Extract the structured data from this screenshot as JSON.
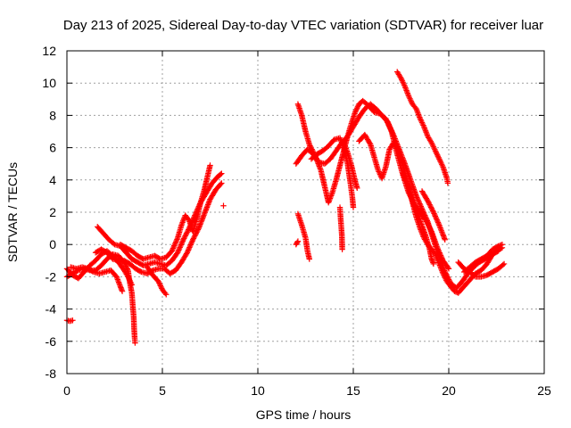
{
  "chart_data": {
    "type": "scatter",
    "title": "Day 213 of 2025, Sidereal Day-to-day VTEC variation (SDTVAR) for receiver luar",
    "xlabel": "GPS time / hours",
    "ylabel": "SDTVAR / TECUs",
    "xlim": [
      0,
      25
    ],
    "ylim": [
      -8,
      12
    ],
    "xticks": [
      0,
      5,
      10,
      15,
      20,
      25
    ],
    "yticks": [
      -8,
      -6,
      -4,
      -2,
      0,
      2,
      4,
      6,
      8,
      10,
      12
    ],
    "grid": true,
    "marker": "+",
    "color": "#ff0000",
    "series": [
      {
        "name": "s1",
        "points": [
          [
            0.0,
            -4.7
          ],
          [
            0.15,
            -4.75
          ],
          [
            0.3,
            -4.7
          ]
        ]
      },
      {
        "name": "s2",
        "points": [
          [
            0.0,
            -2.0
          ],
          [
            0.3,
            -1.8
          ],
          [
            0.6,
            -1.6
          ],
          [
            0.9,
            -1.5
          ],
          [
            1.2,
            -1.6
          ],
          [
            1.5,
            -1.6
          ],
          [
            1.8,
            -1.3
          ],
          [
            2.1,
            -0.9
          ],
          [
            2.4,
            -0.6
          ],
          [
            2.7,
            -0.7
          ],
          [
            3.0,
            -1.1
          ],
          [
            3.2,
            -1.6
          ],
          [
            3.3,
            -2.4
          ],
          [
            3.4,
            -3.0
          ],
          [
            3.45,
            -3.8
          ],
          [
            3.5,
            -4.5
          ],
          [
            3.52,
            -5.2
          ],
          [
            3.55,
            -5.8
          ],
          [
            3.57,
            -6.1
          ]
        ]
      },
      {
        "name": "s3",
        "points": [
          [
            0.0,
            -1.5
          ],
          [
            0.3,
            -1.9
          ],
          [
            0.6,
            -2.1
          ],
          [
            0.9,
            -1.7
          ],
          [
            1.2,
            -1.3
          ],
          [
            1.5,
            -1.0
          ],
          [
            1.8,
            -0.6
          ],
          [
            2.1,
            -0.4
          ],
          [
            2.4,
            -0.7
          ],
          [
            2.7,
            -1.1
          ],
          [
            3.0,
            -1.6
          ],
          [
            3.2,
            -2.0
          ],
          [
            3.4,
            -2.5
          ]
        ]
      },
      {
        "name": "s4",
        "points": [
          [
            0.2,
            -1.4
          ],
          [
            0.5,
            -1.5
          ],
          [
            0.8,
            -1.4
          ],
          [
            1.1,
            -1.5
          ],
          [
            1.4,
            -1.7
          ],
          [
            1.7,
            -1.8
          ],
          [
            2.0,
            -1.7
          ],
          [
            2.3,
            -1.6
          ],
          [
            2.6,
            -2.0
          ],
          [
            2.8,
            -2.6
          ],
          [
            2.9,
            -2.9
          ]
        ]
      },
      {
        "name": "s5",
        "points": [
          [
            1.6,
            1.1
          ],
          [
            1.9,
            0.7
          ],
          [
            2.2,
            0.3
          ],
          [
            2.5,
            0.0
          ],
          [
            2.8,
            -0.1
          ],
          [
            3.1,
            -0.5
          ],
          [
            3.4,
            -0.9
          ],
          [
            3.7,
            -1.1
          ],
          [
            4.0,
            -1.3
          ],
          [
            4.3,
            -1.2
          ],
          [
            4.6,
            -1.1
          ],
          [
            4.9,
            -1.2
          ],
          [
            5.2,
            -1.3
          ],
          [
            5.5,
            -1.0
          ],
          [
            5.8,
            -0.5
          ],
          [
            6.1,
            0.3
          ],
          [
            6.4,
            1.0
          ],
          [
            6.7,
            1.8
          ],
          [
            7.0,
            2.6
          ],
          [
            7.3,
            3.2
          ],
          [
            7.6,
            3.8
          ],
          [
            7.9,
            4.2
          ],
          [
            8.1,
            4.4
          ]
        ]
      },
      {
        "name": "s6",
        "points": [
          [
            2.8,
            0.0
          ],
          [
            3.1,
            -0.2
          ],
          [
            3.4,
            -0.4
          ],
          [
            3.7,
            -0.7
          ],
          [
            4.0,
            -0.9
          ],
          [
            4.3,
            -0.8
          ],
          [
            4.6,
            -0.7
          ],
          [
            4.9,
            -0.9
          ],
          [
            5.2,
            -0.8
          ],
          [
            5.5,
            -0.4
          ],
          [
            5.8,
            0.4
          ],
          [
            6.0,
            1.2
          ],
          [
            6.2,
            1.8
          ],
          [
            6.4,
            1.5
          ],
          [
            6.6,
            0.8
          ],
          [
            6.8,
            1.6
          ],
          [
            7.0,
            2.6
          ],
          [
            7.2,
            3.4
          ],
          [
            7.4,
            4.4
          ],
          [
            7.5,
            4.9
          ]
        ]
      },
      {
        "name": "s7",
        "points": [
          [
            1.5,
            -0.5
          ],
          [
            1.8,
            -0.3
          ],
          [
            2.1,
            -0.5
          ],
          [
            2.4,
            -0.9
          ],
          [
            2.7,
            -1.0
          ],
          [
            3.0,
            -1.0
          ],
          [
            3.3,
            -1.2
          ],
          [
            3.6,
            -1.5
          ],
          [
            3.9,
            -1.7
          ],
          [
            4.2,
            -1.8
          ],
          [
            4.5,
            -1.6
          ],
          [
            4.8,
            -1.5
          ],
          [
            5.1,
            -1.5
          ],
          [
            5.4,
            -1.8
          ],
          [
            5.7,
            -1.6
          ],
          [
            6.0,
            -1.1
          ],
          [
            6.3,
            -0.5
          ],
          [
            6.6,
            0.3
          ],
          [
            6.9,
            1.0
          ],
          [
            7.2,
            1.9
          ],
          [
            7.5,
            2.8
          ],
          [
            7.8,
            3.4
          ],
          [
            8.1,
            3.8
          ]
        ]
      },
      {
        "name": "s8",
        "points": [
          [
            4.2,
            -1.4
          ],
          [
            4.5,
            -1.9
          ],
          [
            4.8,
            -2.3
          ],
          [
            5.0,
            -2.8
          ],
          [
            5.2,
            -3.1
          ]
        ]
      },
      {
        "name": "s9",
        "points": [
          [
            8.2,
            2.4
          ]
        ]
      },
      {
        "name": "s10",
        "points": [
          [
            12.0,
            0.0
          ],
          [
            12.1,
            0.2
          ]
        ]
      },
      {
        "name": "s11",
        "points": [
          [
            12.0,
            5.0
          ],
          [
            12.3,
            5.5
          ],
          [
            12.6,
            5.9
          ],
          [
            12.9,
            5.6
          ],
          [
            13.2,
            5.1
          ],
          [
            13.5,
            5.0
          ],
          [
            13.8,
            5.3
          ],
          [
            14.1,
            5.8
          ],
          [
            14.4,
            6.3
          ],
          [
            14.7,
            6.7
          ],
          [
            15.0,
            7.3
          ],
          [
            15.3,
            7.9
          ],
          [
            15.6,
            8.4
          ],
          [
            15.9,
            8.7
          ],
          [
            16.2,
            8.4
          ],
          [
            16.5,
            8.0
          ],
          [
            16.8,
            7.6
          ],
          [
            17.1,
            6.8
          ],
          [
            17.4,
            5.9
          ],
          [
            17.7,
            5.0
          ],
          [
            18.0,
            4.0
          ],
          [
            18.3,
            3.0
          ],
          [
            18.6,
            2.2
          ],
          [
            18.9,
            1.4
          ],
          [
            19.2,
            0.3
          ],
          [
            19.5,
            -0.8
          ],
          [
            19.8,
            -1.7
          ],
          [
            20.1,
            -2.4
          ],
          [
            20.4,
            -2.7
          ],
          [
            20.7,
            -2.3
          ],
          [
            21.0,
            -1.8
          ],
          [
            21.3,
            -1.4
          ],
          [
            21.6,
            -1.1
          ],
          [
            21.9,
            -0.9
          ],
          [
            22.2,
            -0.7
          ],
          [
            22.5,
            -0.4
          ],
          [
            22.8,
            -0.2
          ]
        ]
      },
      {
        "name": "s12",
        "points": [
          [
            12.1,
            8.7
          ],
          [
            12.3,
            8.0
          ],
          [
            12.5,
            7.0
          ],
          [
            12.7,
            6.2
          ],
          [
            13.0,
            5.5
          ],
          [
            13.3,
            4.6
          ],
          [
            13.5,
            3.6
          ],
          [
            13.7,
            2.6
          ],
          [
            13.9,
            3.2
          ],
          [
            14.1,
            4.0
          ],
          [
            14.3,
            4.9
          ],
          [
            14.5,
            5.8
          ],
          [
            14.7,
            6.7
          ],
          [
            14.9,
            7.5
          ],
          [
            15.1,
            8.2
          ],
          [
            15.3,
            8.7
          ],
          [
            15.5,
            8.9
          ],
          [
            15.8,
            8.6
          ],
          [
            16.1,
            8.2
          ],
          [
            16.4,
            8.1
          ],
          [
            16.7,
            7.8
          ],
          [
            17.0,
            7.0
          ],
          [
            17.3,
            5.6
          ],
          [
            17.6,
            4.3
          ],
          [
            17.9,
            3.2
          ],
          [
            18.2,
            2.5
          ],
          [
            18.5,
            2.0
          ],
          [
            18.8,
            1.5
          ],
          [
            19.1,
            0.8
          ],
          [
            19.4,
            -0.2
          ],
          [
            19.7,
            -1.0
          ],
          [
            20.0,
            -1.5
          ]
        ]
      },
      {
        "name": "s13",
        "points": [
          [
            12.8,
            5.3
          ],
          [
            13.1,
            5.6
          ],
          [
            13.4,
            5.8
          ],
          [
            13.7,
            6.1
          ],
          [
            14.0,
            6.5
          ],
          [
            14.3,
            6.6
          ],
          [
            14.5,
            6.0
          ],
          [
            14.7,
            5.0
          ],
          [
            14.85,
            3.8
          ],
          [
            14.95,
            2.9
          ],
          [
            15.0,
            2.3
          ]
        ]
      },
      {
        "name": "s14",
        "points": [
          [
            14.3,
            2.3
          ],
          [
            14.35,
            1.4
          ],
          [
            14.4,
            0.6
          ],
          [
            14.42,
            -0.3
          ]
        ]
      },
      {
        "name": "s15",
        "points": [
          [
            14.5,
            6.3
          ],
          [
            14.7,
            5.7
          ],
          [
            14.9,
            4.9
          ],
          [
            15.1,
            3.9
          ],
          [
            15.2,
            3.5
          ]
        ]
      },
      {
        "name": "s16",
        "points": [
          [
            12.1,
            1.9
          ],
          [
            12.3,
            1.2
          ],
          [
            12.5,
            0.4
          ],
          [
            12.6,
            -0.4
          ],
          [
            12.7,
            -0.9
          ]
        ]
      },
      {
        "name": "s17",
        "points": [
          [
            15.3,
            6.4
          ],
          [
            15.6,
            6.8
          ],
          [
            15.9,
            6.2
          ],
          [
            16.1,
            5.4
          ],
          [
            16.3,
            4.6
          ],
          [
            16.5,
            4.1
          ],
          [
            16.7,
            4.8
          ],
          [
            16.9,
            5.9
          ],
          [
            17.1,
            6.3
          ],
          [
            17.3,
            6.0
          ],
          [
            17.5,
            5.3
          ],
          [
            17.7,
            4.4
          ],
          [
            17.9,
            3.5
          ],
          [
            18.1,
            2.6
          ],
          [
            18.3,
            1.7
          ],
          [
            18.5,
            1.0
          ],
          [
            18.7,
            0.4
          ],
          [
            18.9,
            0.0
          ],
          [
            19.1,
            -0.3
          ],
          [
            19.3,
            -0.6
          ],
          [
            19.5,
            -1.2
          ],
          [
            19.7,
            -1.8
          ],
          [
            19.9,
            -2.3
          ],
          [
            20.1,
            -2.6
          ],
          [
            20.3,
            -2.9
          ],
          [
            20.5,
            -3.0
          ],
          [
            20.8,
            -2.6
          ],
          [
            21.1,
            -2.2
          ],
          [
            21.4,
            -1.8
          ],
          [
            21.7,
            -1.6
          ],
          [
            22.0,
            -1.2
          ],
          [
            22.3,
            -0.6
          ],
          [
            22.6,
            -0.4
          ]
        ]
      },
      {
        "name": "s18",
        "points": [
          [
            17.3,
            10.7
          ],
          [
            17.5,
            10.3
          ],
          [
            17.7,
            9.8
          ],
          [
            17.9,
            9.2
          ],
          [
            18.1,
            8.7
          ],
          [
            18.3,
            8.4
          ],
          [
            18.5,
            7.8
          ],
          [
            18.7,
            7.3
          ],
          [
            18.9,
            6.7
          ],
          [
            19.1,
            6.3
          ],
          [
            19.3,
            5.8
          ],
          [
            19.5,
            5.3
          ],
          [
            19.7,
            4.8
          ],
          [
            19.9,
            4.1
          ],
          [
            19.95,
            3.8
          ]
        ]
      },
      {
        "name": "s19",
        "points": [
          [
            17.6,
            4.4
          ],
          [
            17.9,
            3.6
          ],
          [
            18.2,
            2.4
          ],
          [
            18.5,
            1.5
          ],
          [
            18.8,
            0.5
          ],
          [
            19.0,
            -0.3
          ],
          [
            19.1,
            -0.9
          ],
          [
            19.2,
            -1.2
          ]
        ]
      },
      {
        "name": "s20",
        "points": [
          [
            18.6,
            3.3
          ],
          [
            18.9,
            2.7
          ],
          [
            19.2,
            2.0
          ],
          [
            19.5,
            1.2
          ],
          [
            19.7,
            0.6
          ],
          [
            19.8,
            0.3
          ]
        ]
      },
      {
        "name": "s21",
        "points": [
          [
            20.5,
            -1.1
          ],
          [
            20.8,
            -1.5
          ],
          [
            21.1,
            -1.7
          ],
          [
            21.4,
            -2.0
          ],
          [
            21.7,
            -2.0
          ],
          [
            22.0,
            -1.9
          ],
          [
            22.3,
            -1.7
          ],
          [
            22.6,
            -1.5
          ],
          [
            22.9,
            -1.2
          ]
        ]
      },
      {
        "name": "s22",
        "points": [
          [
            20.8,
            -1.7
          ],
          [
            21.1,
            -1.4
          ],
          [
            21.4,
            -1.1
          ],
          [
            21.7,
            -0.9
          ],
          [
            22.0,
            -0.7
          ],
          [
            22.3,
            -0.3
          ],
          [
            22.6,
            -0.1
          ],
          [
            22.8,
            0.0
          ]
        ]
      }
    ]
  }
}
